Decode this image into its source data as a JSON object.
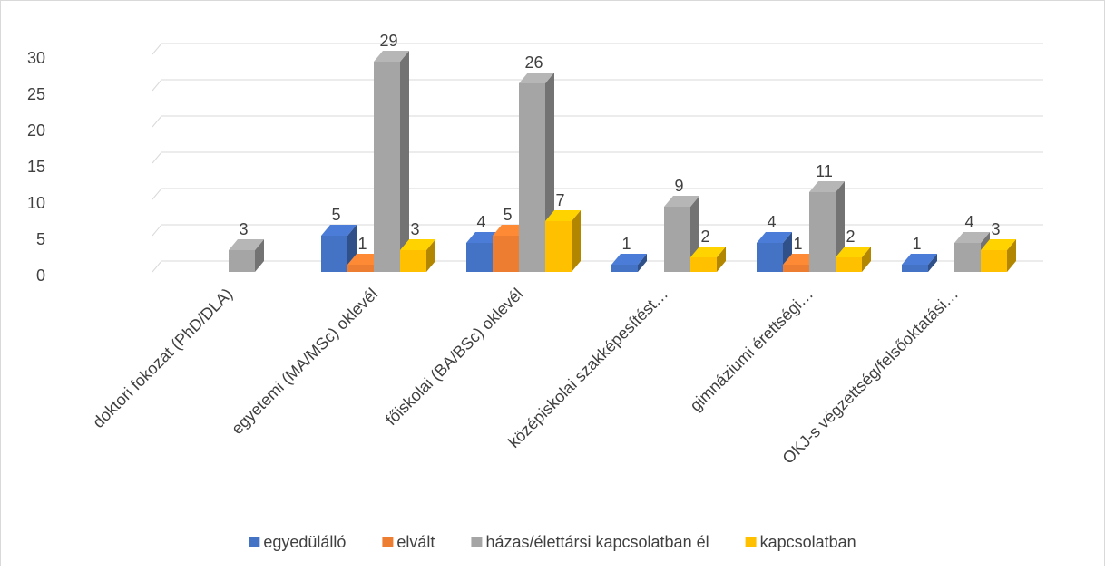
{
  "chart_data": {
    "type": "bar3d",
    "categories": [
      "doktori fokozat (PhD/DLA)",
      "egyetemi (MA/MSc) oklevél",
      "főiskolai (BA/BSc) oklevél",
      "középiskolai szakképesítést…",
      "gimnáziumi érettségi…",
      "OKJ-s végzettség/felsőoktatási…"
    ],
    "series": [
      {
        "name": "egyedülálló",
        "color": "#4472c4",
        "values": [
          null,
          5,
          4,
          1,
          4,
          1
        ]
      },
      {
        "name": "elvált",
        "color": "#ed7d31",
        "values": [
          null,
          1,
          5,
          null,
          1,
          null
        ]
      },
      {
        "name": "házas/élettársi kapcsolatban él",
        "color": "#a5a5a5",
        "values": [
          3,
          29,
          26,
          9,
          11,
          4
        ]
      },
      {
        "name": "kapcsolatban",
        "color": "#ffc000",
        "values": [
          null,
          3,
          7,
          2,
          2,
          3
        ]
      }
    ],
    "ylim": [
      0,
      30
    ],
    "yticks": [
      0,
      5,
      10,
      15,
      20,
      25,
      30
    ],
    "grid": true,
    "legend": "bottom"
  }
}
